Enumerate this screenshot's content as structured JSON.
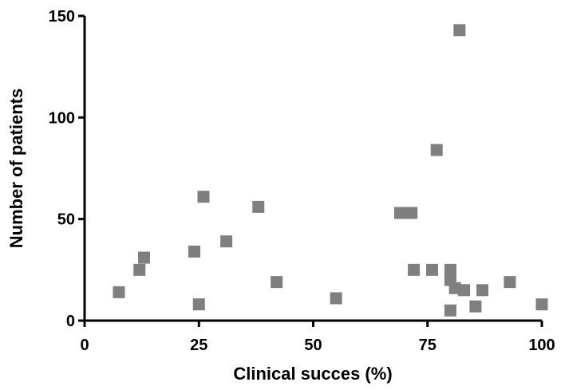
{
  "chart_data": {
    "type": "scatter",
    "title": "",
    "xlabel": "Clinical succes (%)",
    "ylabel": "Number of patients",
    "xlim": [
      0,
      100
    ],
    "ylim": [
      0,
      150
    ],
    "x_ticks": [
      0,
      25,
      50,
      75,
      100
    ],
    "y_ticks": [
      0,
      50,
      100,
      150
    ],
    "x_tick_labels": [
      "0",
      "25",
      "50",
      "75",
      "100"
    ],
    "y_tick_labels": [
      "0",
      "50",
      "100",
      "150"
    ],
    "grid": false,
    "legend": "none",
    "marker": "square",
    "color": "#7f7f7f",
    "series": [
      {
        "points": [
          {
            "x": 7.5,
            "y": 14
          },
          {
            "x": 12,
            "y": 25
          },
          {
            "x": 13,
            "y": 31
          },
          {
            "x": 24,
            "y": 34
          },
          {
            "x": 25,
            "y": 8
          },
          {
            "x": 26,
            "y": 61
          },
          {
            "x": 31,
            "y": 39
          },
          {
            "x": 38,
            "y": 56
          },
          {
            "x": 42,
            "y": 19
          },
          {
            "x": 55,
            "y": 11
          },
          {
            "x": 69,
            "y": 53
          },
          {
            "x": 71.5,
            "y": 53
          },
          {
            "x": 72,
            "y": 25
          },
          {
            "x": 76,
            "y": 25
          },
          {
            "x": 77,
            "y": 84
          },
          {
            "x": 80,
            "y": 25
          },
          {
            "x": 80,
            "y": 20
          },
          {
            "x": 80,
            "y": 5
          },
          {
            "x": 81,
            "y": 16
          },
          {
            "x": 82,
            "y": 143
          },
          {
            "x": 83,
            "y": 15
          },
          {
            "x": 85.5,
            "y": 7
          },
          {
            "x": 87,
            "y": 15
          },
          {
            "x": 93,
            "y": 19
          },
          {
            "x": 100,
            "y": 8
          }
        ]
      }
    ]
  }
}
